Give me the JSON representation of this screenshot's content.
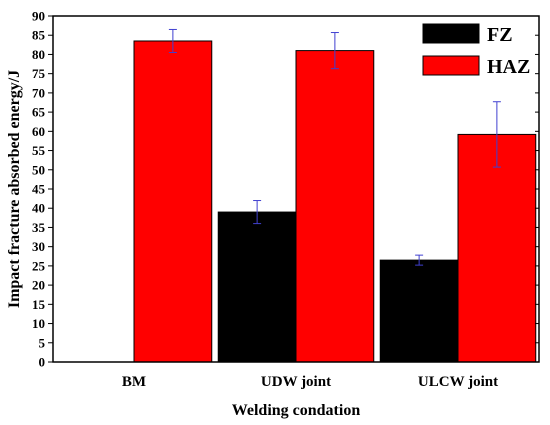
{
  "chart_data": {
    "type": "bar",
    "title": "",
    "xlabel": "Welding condation",
    "ylabel": "Impact fracture absorbed energy/J",
    "ylim": [
      0,
      90
    ],
    "ytick_step": 5,
    "grid": false,
    "legend_position": "top-right",
    "categories": [
      "BM",
      "UDW joint",
      "ULCW joint"
    ],
    "series": [
      {
        "name": "FZ",
        "color": "#000000",
        "values": [
          null,
          39,
          26.5
        ],
        "errors": [
          null,
          3,
          1.3
        ]
      },
      {
        "name": "HAZ",
        "color": "#ff0000",
        "values": [
          83.5,
          81,
          59.2
        ],
        "errors": [
          3,
          4.7,
          8.5
        ]
      }
    ],
    "error_bar_color": "#4040d0"
  }
}
